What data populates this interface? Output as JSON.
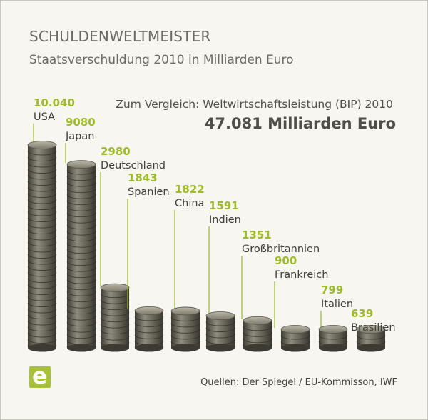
{
  "title": "SCHULDENWELTMEISTER",
  "subtitle": "Staatsverschuldung 2010 in Milliarden Euro",
  "comparison": {
    "label": "Zum Vergleich: Weltwirtschaftsleistung (BIP) 2010",
    "value": "47.081 Milliarden Euro"
  },
  "source": "Quellen: Der Spiegel / EU-Kommisson, IWF",
  "logo_letter": "e",
  "colors": {
    "accent": "#9dbb2a",
    "coin_dark": "#5c5a50",
    "coin_light": "#b6b3a4",
    "leader": "#9dbb2a"
  },
  "chart_data": {
    "type": "bar",
    "categories": [
      "USA",
      "Japan",
      "Deutschland",
      "Spanien",
      "China",
      "Indien",
      "Großbritannien",
      "Frankreich",
      "Italien",
      "Brasilien"
    ],
    "values": [
      10040,
      9080,
      2980,
      1843,
      1822,
      1591,
      1351,
      900,
      799,
      639
    ],
    "value_labels": [
      "10.040",
      "9080",
      "2980",
      "1843",
      "1822",
      "1591",
      "1351",
      "900",
      "799",
      "639"
    ],
    "xlabel": "",
    "ylabel": "",
    "grid": false
  }
}
